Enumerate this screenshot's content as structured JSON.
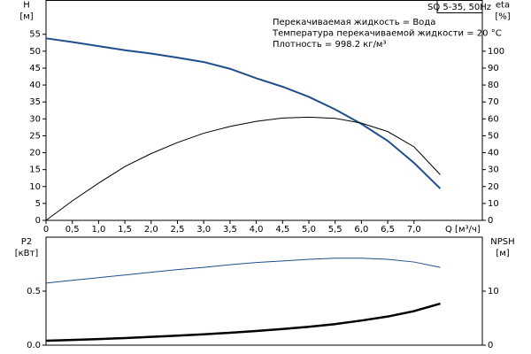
{
  "chart_data": [
    {
      "type": "line",
      "title": "SQ 5-35, 50Hz",
      "ylabel": [
        "H",
        "[м]"
      ],
      "y2label": [
        "eta",
        "[%]"
      ],
      "xlabel": "Q [м³/ч]",
      "annotations": [
        "Перекачиваемая жидкость = Вода",
        "Температура перекачиваемой жидкости = 20 °C",
        "Плотность = 998.2 кг/м³"
      ],
      "x": [
        0,
        0.5,
        1,
        1.5,
        2,
        2.5,
        3,
        3.5,
        4,
        4.5,
        5,
        5.5,
        6,
        6.5,
        7,
        7.5
      ],
      "series": [
        {
          "color": "#1f4e8c",
          "width": 2,
          "values": [
            53.8,
            52.7,
            51.5,
            50.3,
            49.3,
            48.1,
            46.8,
            44.8,
            42,
            39.5,
            36.5,
            32.8,
            28.5,
            23.5,
            17,
            9.4
          ]
        },
        {
          "color": "#000000",
          "width": 1,
          "axis": "y2",
          "values": [
            0,
            11.5,
            22,
            31.8,
            39.5,
            46,
            51.5,
            55.5,
            58.5,
            60.5,
            61,
            60.3,
            57.5,
            52.5,
            43.5,
            27
          ]
        }
      ],
      "xlim": [
        0,
        8.3
      ],
      "xticks": [
        0,
        {
          "value": 0.5,
          "label": "0,5"
        },
        {
          "value": 1,
          "label": "1,0"
        },
        {
          "value": 1.5,
          "label": "1,5"
        },
        {
          "value": 2,
          "label": "2,0"
        },
        {
          "value": 2.5,
          "label": "2,5"
        },
        {
          "value": 3,
          "label": "3,0"
        },
        {
          "value": 3.5,
          "label": "3,5"
        },
        {
          "value": 4,
          "label": "4,0"
        },
        {
          "value": 4.5,
          "label": "4,5"
        },
        {
          "value": 5,
          "label": "5,0"
        },
        {
          "value": 5.5,
          "label": "5,5"
        },
        {
          "value": 6,
          "label": "6,0"
        },
        {
          "value": 6.5,
          "label": "6,5"
        },
        {
          "value": 7,
          "label": "7,0"
        }
      ],
      "ylim": [
        0,
        65
      ],
      "yticks": [
        0,
        5,
        10,
        15,
        20,
        25,
        30,
        35,
        40,
        45,
        50,
        55
      ],
      "y2lim": [
        0,
        130
      ],
      "y2ticks": [
        0,
        10,
        20,
        30,
        40,
        50,
        60,
        70,
        80,
        90,
        100
      ]
    },
    {
      "type": "line",
      "ylabel": [
        "P2",
        "[кВт]"
      ],
      "y2label": [
        "NPSH",
        "[м]"
      ],
      "x": [
        0,
        0.5,
        1,
        1.5,
        2,
        2.5,
        3,
        3.5,
        4,
        4.5,
        5,
        5.5,
        6,
        6.5,
        7,
        7.5
      ],
      "series": [
        {
          "color": "#000000",
          "width": 2.5,
          "values": [
            0.041,
            0.048,
            0.056,
            0.066,
            0.077,
            0.088,
            0.1,
            0.115,
            0.131,
            0.15,
            0.17,
            0.195,
            0.228,
            0.265,
            0.315,
            0.385
          ]
        },
        {
          "color": "#1f4e8c",
          "width": 1,
          "axis": "y2",
          "values": [
            11.5,
            12,
            12.5,
            13,
            13.5,
            14,
            14.4,
            14.9,
            15.3,
            15.6,
            15.9,
            16.1,
            16.1,
            15.9,
            15.4,
            14.4
          ]
        }
      ],
      "xlim": [
        0,
        8.3
      ],
      "ylim": [
        0,
        1
      ],
      "yticks": [
        {
          "value": 0,
          "label": "0.0"
        },
        0.5
      ],
      "y2lim": [
        0,
        20
      ],
      "y2ticks": [
        0,
        10
      ]
    }
  ]
}
